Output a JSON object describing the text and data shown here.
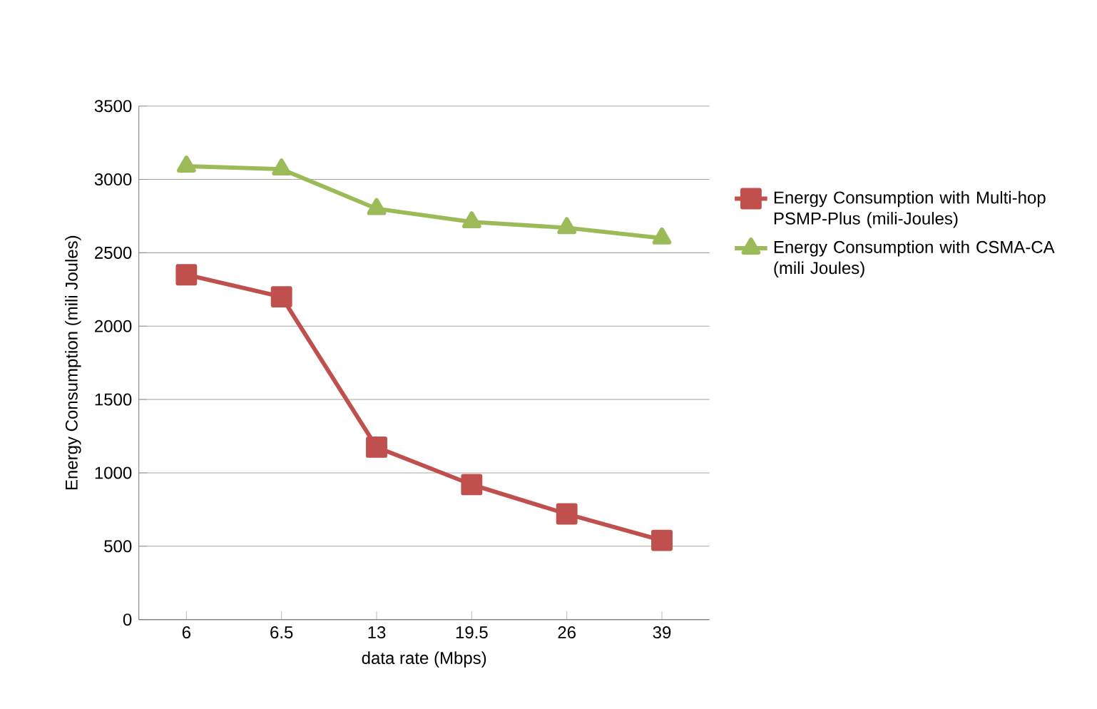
{
  "chart_data": {
    "type": "line",
    "xlabel": "data rate (Mbps)",
    "ylabel": "Energy Consumption (mili Joules)",
    "categories": [
      "6",
      "6.5",
      "13",
      "19.5",
      "26",
      "39"
    ],
    "series": [
      {
        "name": "Energy Consumption with Multi-hop PSMP-Plus (mili-Joules)",
        "color": "#c0504d",
        "marker": "square",
        "values": [
          2350,
          2200,
          1175,
          920,
          720,
          540
        ]
      },
      {
        "name": "Energy Consumption with CSMA-CA (mili Joules)",
        "color": "#9bbb59",
        "marker": "triangle",
        "values": [
          3090,
          3070,
          2800,
          2710,
          2670,
          2600
        ]
      }
    ],
    "ylim": [
      0,
      3500
    ],
    "yticks": [
      0,
      500,
      1000,
      1500,
      2000,
      2500,
      3000,
      3500
    ],
    "grid": "y",
    "legend": "right",
    "line_style": "solid"
  }
}
